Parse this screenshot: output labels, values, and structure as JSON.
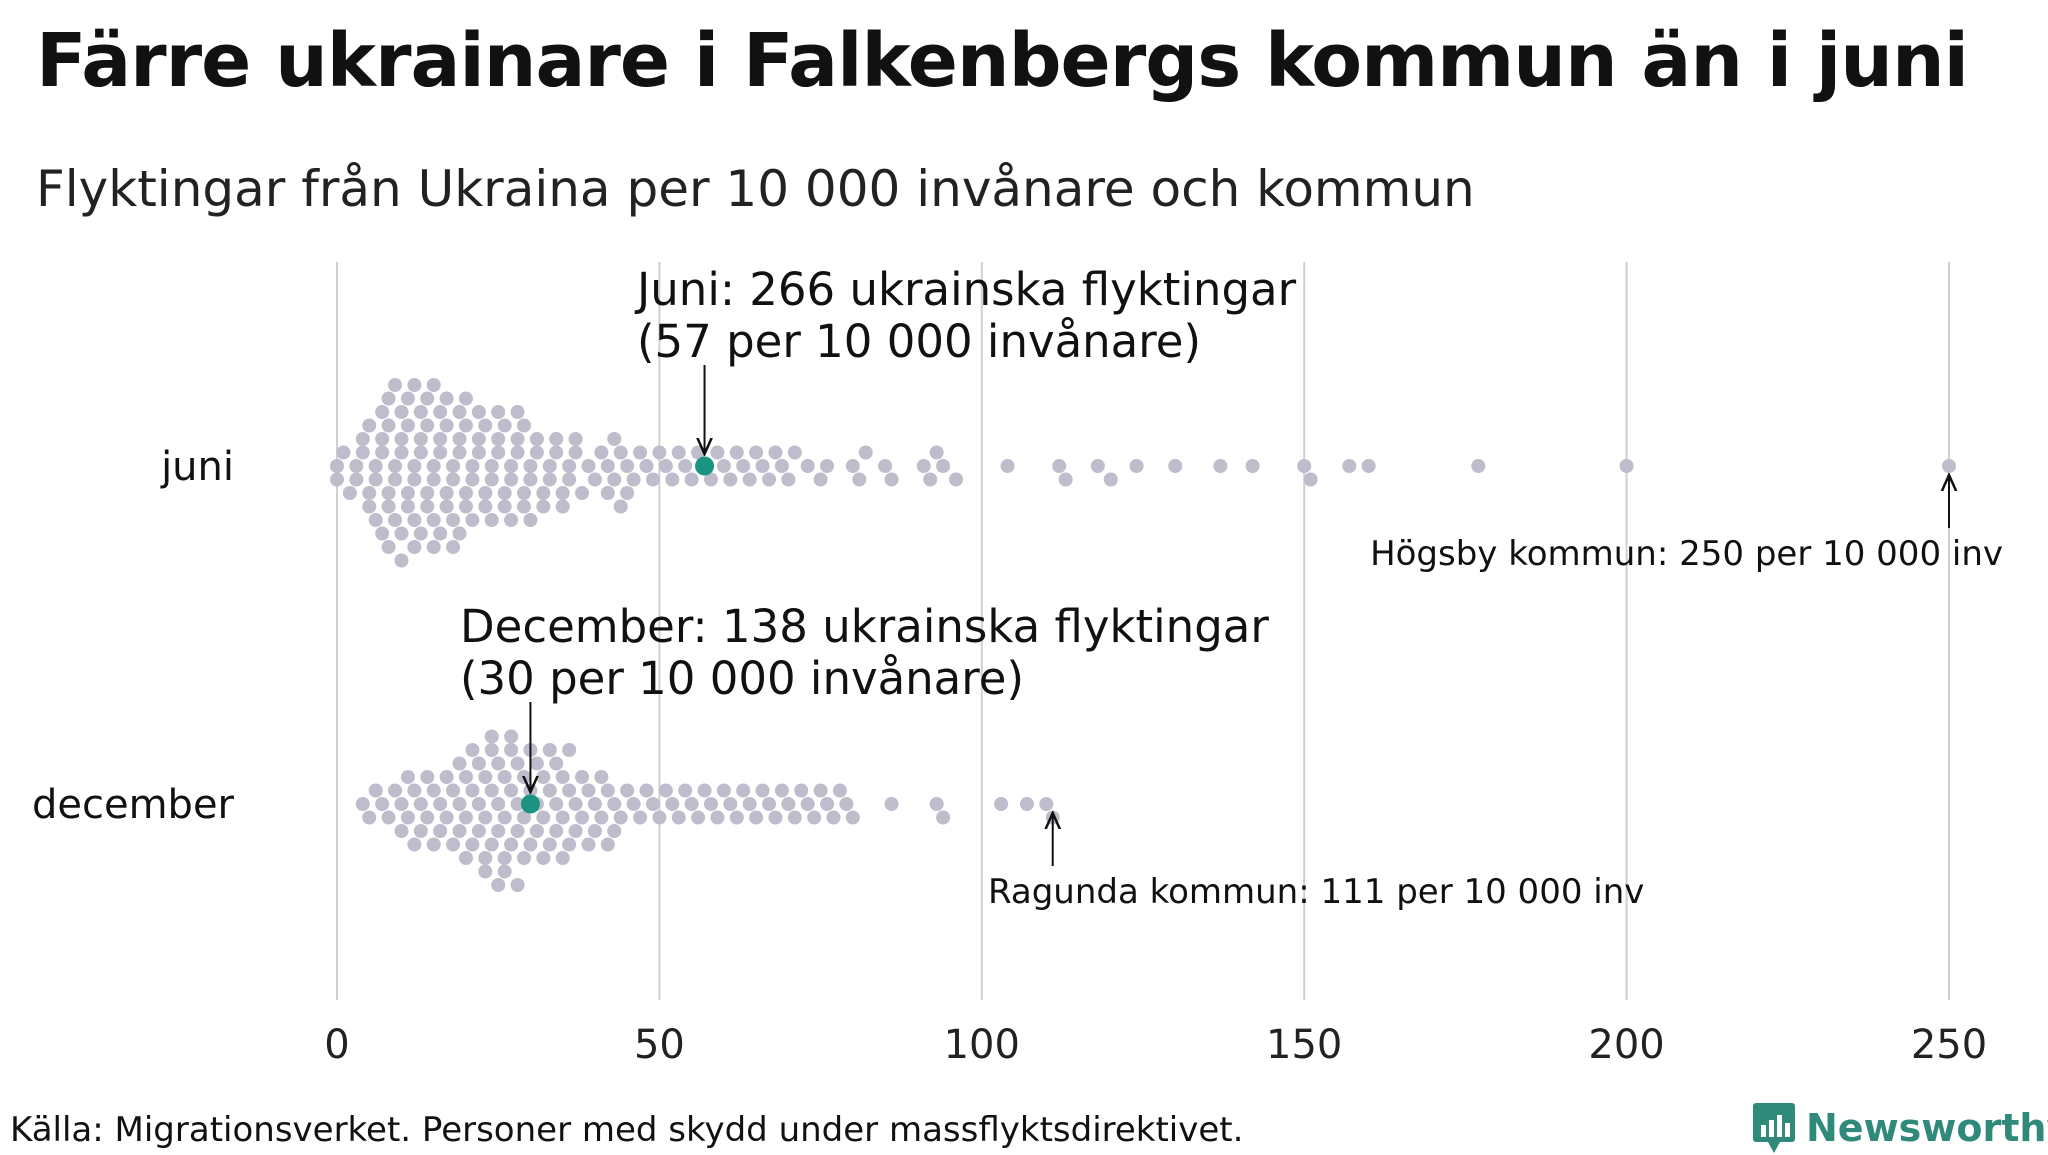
{
  "header": {
    "title": "Färre ukrainare i Falkenbergs kommun än i juni",
    "subtitle": "Flyktingar från Ukraina per 10 000 invånare och kommun"
  },
  "footer": {
    "source": "Källa: Migrationsverket. Personer med skydd under massflyktsdirektivet.",
    "brand": "Newsworthy"
  },
  "colors": {
    "dot": "#bfbccb",
    "highlight": "#1a9480",
    "grid": "#d0d0d0",
    "brand": "#2f8a7a"
  },
  "chart_data": {
    "type": "scatter",
    "style": "beeswarm",
    "title": "Färre ukrainare i Falkenbergs kommun än i juni",
    "subtitle": "Flyktingar från Ukraina per 10 000 invånare och kommun",
    "xlim": [
      0,
      250
    ],
    "xticks": [
      0,
      50,
      100,
      150,
      200,
      250
    ],
    "grid": "vertical",
    "categories": [
      "juni",
      "december"
    ],
    "series": [
      {
        "name": "juni",
        "values": [
          0,
          0,
          1,
          2,
          3,
          3,
          4,
          4,
          5,
          5,
          5,
          6,
          6,
          6,
          7,
          7,
          7,
          7,
          8,
          8,
          8,
          8,
          8,
          9,
          9,
          9,
          9,
          10,
          10,
          10,
          10,
          10,
          11,
          11,
          11,
          11,
          12,
          12,
          12,
          12,
          12,
          13,
          13,
          13,
          13,
          14,
          14,
          14,
          14,
          15,
          15,
          15,
          15,
          15,
          16,
          16,
          16,
          16,
          17,
          17,
          17,
          17,
          18,
          18,
          18,
          18,
          19,
          19,
          19,
          19,
          20,
          20,
          20,
          20,
          21,
          21,
          21,
          22,
          22,
          22,
          23,
          23,
          23,
          24,
          24,
          24,
          25,
          25,
          25,
          26,
          26,
          26,
          27,
          27,
          27,
          28,
          28,
          28,
          29,
          29,
          29,
          30,
          30,
          30,
          31,
          31,
          32,
          32,
          33,
          33,
          34,
          34,
          35,
          35,
          36,
          36,
          37,
          37,
          38,
          39,
          40,
          41,
          42,
          42,
          43,
          43,
          44,
          44,
          45,
          45,
          46,
          47,
          48,
          49,
          50,
          51,
          52,
          53,
          54,
          55,
          56,
          57,
          58,
          59,
          60,
          61,
          62,
          63,
          64,
          65,
          66,
          67,
          68,
          69,
          70,
          71,
          73,
          75,
          76,
          80,
          81,
          82,
          85,
          86,
          91,
          92,
          93,
          94,
          96,
          104,
          112,
          113,
          118,
          120,
          124,
          130,
          137,
          142,
          150,
          151,
          157,
          160,
          177,
          200,
          250
        ],
        "highlight": {
          "label": "Falkenberg",
          "value": 57
        }
      },
      {
        "name": "december",
        "values": [
          4,
          5,
          6,
          7,
          8,
          9,
          10,
          10,
          11,
          11,
          12,
          12,
          13,
          13,
          14,
          14,
          15,
          15,
          16,
          16,
          17,
          17,
          18,
          18,
          19,
          19,
          19,
          20,
          20,
          20,
          21,
          21,
          21,
          22,
          22,
          22,
          23,
          23,
          23,
          23,
          24,
          24,
          24,
          24,
          25,
          25,
          25,
          25,
          26,
          26,
          26,
          26,
          27,
          27,
          27,
          27,
          28,
          28,
          28,
          28,
          29,
          29,
          29,
          30,
          30,
          30,
          31,
          31,
          31,
          32,
          32,
          32,
          33,
          33,
          33,
          34,
          34,
          34,
          35,
          35,
          35,
          36,
          36,
          36,
          37,
          37,
          38,
          38,
          39,
          39,
          40,
          40,
          41,
          41,
          42,
          42,
          43,
          43,
          44,
          45,
          46,
          47,
          48,
          49,
          50,
          51,
          52,
          53,
          54,
          55,
          56,
          57,
          58,
          59,
          60,
          61,
          62,
          63,
          64,
          65,
          66,
          67,
          68,
          69,
          70,
          71,
          72,
          73,
          74,
          75,
          76,
          77,
          78,
          79,
          80,
          86,
          93,
          94,
          103,
          107,
          110,
          111
        ],
        "highlight": {
          "label": "Falkenberg",
          "value": 30
        }
      }
    ],
    "annotations": [
      {
        "series": "juni",
        "x": 57,
        "lines": [
          "Juni: 266 ukrainska flyktingar",
          "(57 per 10 000 invånare)"
        ]
      },
      {
        "series": "december",
        "x": 30,
        "lines": [
          "December: 138 ukrainska flyktingar",
          "(30 per 10 000 invånare)"
        ]
      },
      {
        "series": "juni",
        "x": 250,
        "text": "Högsby kommun: 250 per 10 000 inv"
      },
      {
        "series": "december",
        "x": 111,
        "text": "Ragunda kommun: 111 per 10 000 inv"
      }
    ]
  }
}
